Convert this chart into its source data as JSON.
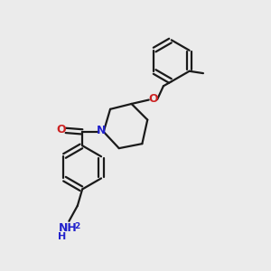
{
  "background_color": "#ebebeb",
  "bond_color": "#1a1a1a",
  "nitrogen_color": "#2222cc",
  "oxygen_color": "#cc2222",
  "figsize": [
    3.0,
    3.0
  ],
  "dpi": 100,
  "xlim": [
    0,
    10
  ],
  "ylim": [
    0,
    10
  ]
}
